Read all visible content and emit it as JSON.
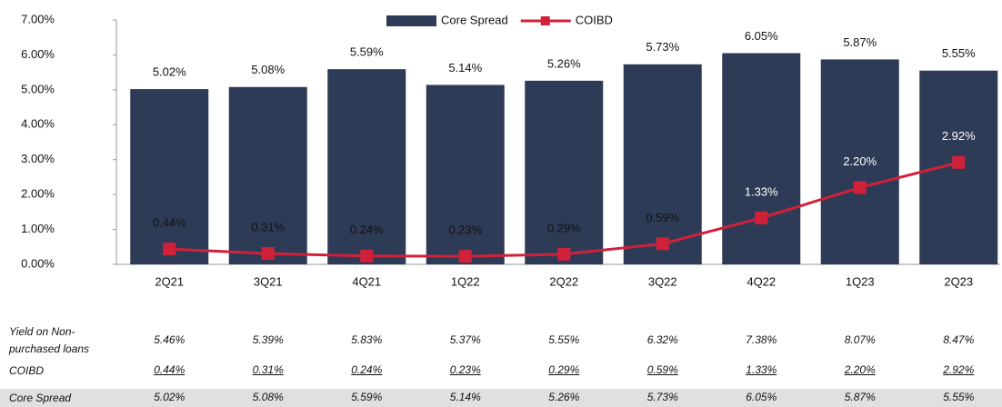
{
  "chart_data": {
    "type": "bar",
    "categories": [
      "2Q21",
      "3Q21",
      "4Q21",
      "1Q22",
      "2Q22",
      "3Q22",
      "4Q22",
      "1Q23",
      "2Q23"
    ],
    "series": [
      {
        "name": "Core Spread",
        "type": "bar",
        "color": "#2e3b56",
        "values": [
          5.02,
          5.08,
          5.59,
          5.14,
          5.26,
          5.73,
          6.05,
          5.87,
          5.55
        ],
        "value_labels": [
          "5.02%",
          "5.08%",
          "5.59%",
          "5.14%",
          "5.26%",
          "5.73%",
          "6.05%",
          "5.87%",
          "5.55%"
        ]
      },
      {
        "name": "COIBD",
        "type": "line",
        "color": "#d0213a",
        "values": [
          0.44,
          0.31,
          0.24,
          0.23,
          0.29,
          0.59,
          1.33,
          2.2,
          2.92
        ],
        "value_labels": [
          "0.44%",
          "0.31%",
          "0.24%",
          "0.23%",
          "0.29%",
          "0.59%",
          "1.33%",
          "2.20%",
          "2.92%"
        ]
      }
    ],
    "ylim": [
      0,
      7
    ],
    "yticks": [
      {
        "value": 0,
        "label": "0.00%"
      },
      {
        "value": 1,
        "label": "1.00%"
      },
      {
        "value": 2,
        "label": "2.00%"
      },
      {
        "value": 3,
        "label": "3.00%"
      },
      {
        "value": 4,
        "label": "4.00%"
      },
      {
        "value": 5,
        "label": "5.00%"
      },
      {
        "value": 6,
        "label": "6.00%"
      },
      {
        "value": 7,
        "label": "7.00%"
      }
    ],
    "legend": "top"
  },
  "table": {
    "rows": [
      {
        "label": "Yield on Non-purchased loans",
        "values": [
          "5.46%",
          "5.39%",
          "5.83%",
          "5.37%",
          "5.55%",
          "6.32%",
          "7.38%",
          "8.07%",
          "8.47%"
        ]
      },
      {
        "label": "COIBD",
        "values": [
          "0.44%",
          "0.31%",
          "0.24%",
          "0.23%",
          "0.29%",
          "0.59%",
          "1.33%",
          "2.20%",
          "2.92%"
        ]
      },
      {
        "label": "Core Spread",
        "values": [
          "5.02%",
          "5.08%",
          "5.59%",
          "5.14%",
          "5.26%",
          "5.73%",
          "6.05%",
          "5.87%",
          "5.55%"
        ]
      }
    ]
  }
}
